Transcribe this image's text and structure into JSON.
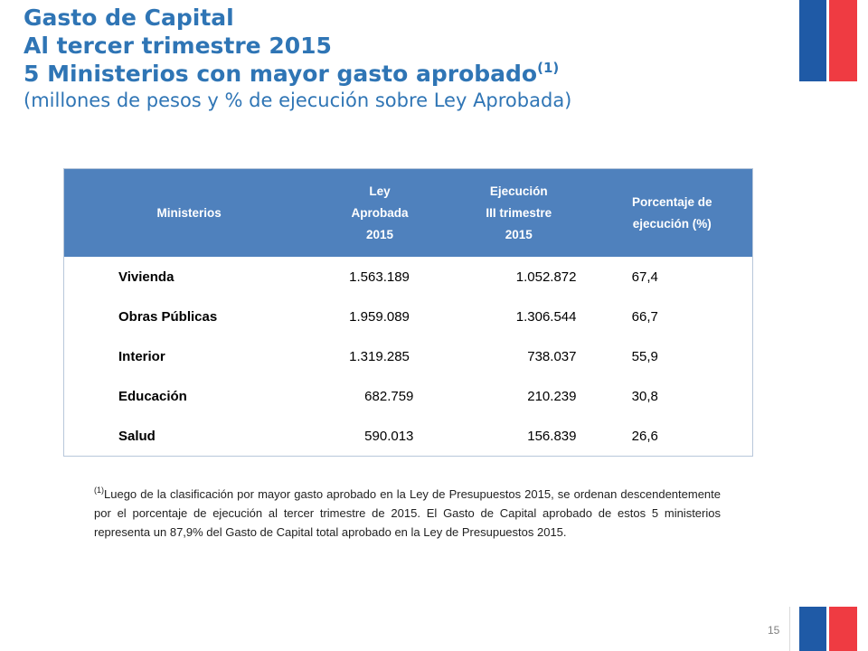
{
  "title": {
    "line1": "Gasto de Capital",
    "line2": "Al tercer trimestre 2015",
    "line3": "5 Ministerios con mayor gasto aprobado",
    "line3_sup": "(1)",
    "subtitle": "(millones de pesos y % de ejecución sobre Ley Aprobada)"
  },
  "table": {
    "headers": {
      "ministerios": "Ministerios",
      "ley": [
        "Ley",
        "Aprobada",
        "2015"
      ],
      "ejecucion": [
        "Ejecución",
        "III trimestre",
        "2015"
      ],
      "porcentaje": [
        "Porcentaje de",
        "ejecución (%)"
      ]
    },
    "rows": [
      {
        "ministerio": "Vivienda",
        "ley": "1.563.189",
        "ejecucion": "1.052.872",
        "porcentaje": "67,4"
      },
      {
        "ministerio": "Obras Públicas",
        "ley": "1.959.089",
        "ejecucion": "1.306.544",
        "porcentaje": "66,7"
      },
      {
        "ministerio": "Interior",
        "ley": "1.319.285",
        "ejecucion": "738.037",
        "porcentaje": "55,9"
      },
      {
        "ministerio": "Educación",
        "ley": "682.759",
        "ejecucion": "210.239",
        "porcentaje": "30,8"
      },
      {
        "ministerio": "Salud",
        "ley": "590.013",
        "ejecucion": "156.839",
        "porcentaje": "26,6"
      }
    ]
  },
  "footnote": {
    "marker": "(1)",
    "text": "Luego de la clasificación por mayor gasto aprobado en la Ley de Presupuestos 2015, se ordenan descendentemente por el porcentaje de ejecución al tercer trimestre de 2015. El Gasto de Capital aprobado de estos 5 ministerios representa un 87,9% del Gasto de Capital total aprobado en la Ley de Presupuestos 2015."
  },
  "page_number": "15",
  "colors": {
    "title": "#2f75b5",
    "table_header": "#4f81bd",
    "flag_blue": "#1f5aa6",
    "flag_red": "#ef3b42"
  }
}
